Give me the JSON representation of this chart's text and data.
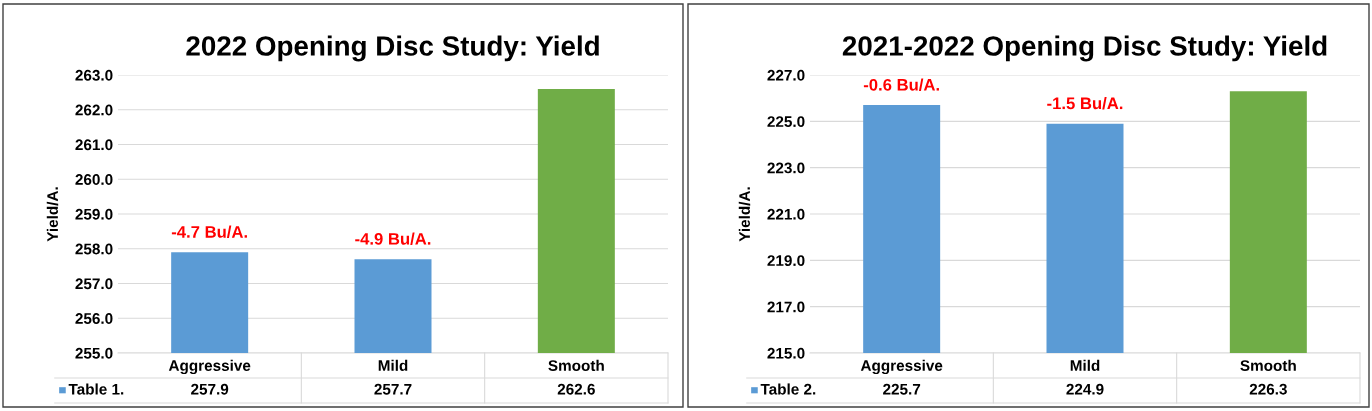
{
  "chart_data": [
    {
      "type": "bar",
      "title": "2022 Opening Disc Study: Yield",
      "ylabel": "Yield/A.",
      "categories": [
        "Aggressive",
        "Mild",
        "Smooth"
      ],
      "series": [
        {
          "name": "Table 1.",
          "color": "#5b9bd5",
          "colors": [
            "#5b9bd5",
            "#5b9bd5",
            "#70ad47"
          ],
          "values": [
            257.9,
            257.7,
            262.6
          ]
        }
      ],
      "ylim": [
        255.0,
        263.0
      ],
      "yticks": [
        {
          "value": 255,
          "label": "255.0"
        },
        {
          "value": 256,
          "label": "256.0"
        },
        {
          "value": 257,
          "label": "257.0"
        },
        {
          "value": 258,
          "label": "258.0"
        },
        {
          "value": 259,
          "label": "259.0"
        },
        {
          "value": 260,
          "label": "260.0"
        },
        {
          "value": 261,
          "label": "261.0"
        },
        {
          "value": 262,
          "label": "262.0"
        },
        {
          "value": 263,
          "label": "263.0"
        }
      ],
      "grid": "y",
      "data_labels": true,
      "legend": "bottom",
      "annotations": [
        {
          "text": "-4.7 Bu/A.",
          "x": "Aggressive",
          "y": 257.9
        },
        {
          "text": "-4.9 Bu/A.",
          "x": "Mild",
          "y": 257.7
        }
      ]
    },
    {
      "type": "bar",
      "title": "2021-2022 Opening Disc Study: Yield",
      "ylabel": "Yield/A.",
      "categories": [
        "Aggressive",
        "Mild",
        "Smooth"
      ],
      "series": [
        {
          "name": "Table 2.",
          "color": "#5b9bd5",
          "colors": [
            "#5b9bd5",
            "#5b9bd5",
            "#70ad47"
          ],
          "values": [
            225.7,
            224.9,
            226.3
          ]
        }
      ],
      "ylim": [
        215.0,
        227.0
      ],
      "yticks": [
        {
          "value": 215,
          "label": "215.0"
        },
        {
          "value": 217,
          "label": "217.0"
        },
        {
          "value": 219,
          "label": "219.0"
        },
        {
          "value": 221,
          "label": "221.0"
        },
        {
          "value": 223,
          "label": "223.0"
        },
        {
          "value": 225,
          "label": "225.0"
        },
        {
          "value": 227,
          "label": "227.0"
        }
      ],
      "grid": "y",
      "data_labels": true,
      "legend": "bottom",
      "annotations": [
        {
          "text": "-0.6 Bu/A.",
          "x": "Aggressive",
          "y": 225.7
        },
        {
          "text": "-1.5 Bu/A.",
          "x": "Mild",
          "y": 224.9
        }
      ]
    }
  ]
}
